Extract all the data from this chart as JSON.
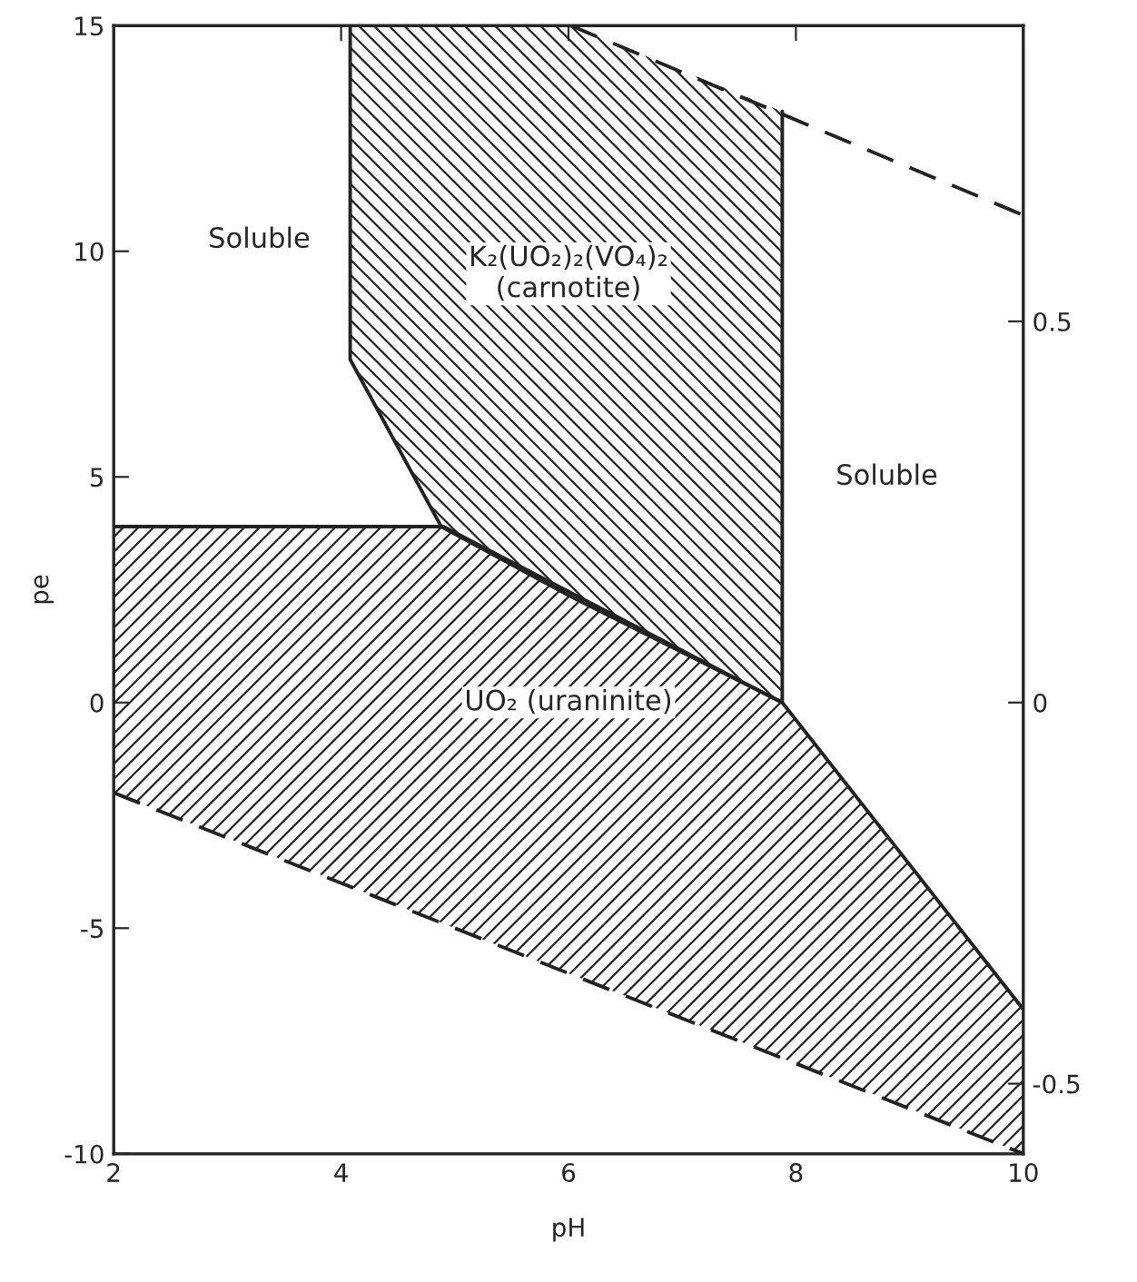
{
  "chart_data": {
    "type": "line",
    "xlabel": "pH",
    "ylabel": "pe",
    "xlim": [
      2,
      10
    ],
    "xticks": [
      2,
      4,
      6,
      8,
      10
    ],
    "ylim": [
      -10,
      15
    ],
    "yticks": [
      -10,
      -5,
      0,
      5,
      10,
      15
    ],
    "y2lim": [
      -0.592,
      0.888
    ],
    "y2ticks": [
      -0.5,
      0,
      0.5
    ],
    "grid": false,
    "legend": false,
    "series": [
      {
        "color": "#222222",
        "x": [
          2,
          4.9,
          7.88,
          10
        ],
        "values": [
          3.9,
          3.9,
          0,
          -6.8
        ],
        "lower": [
          -2,
          -4.9,
          -7.88,
          -10
        ],
        "upper": [
          3.9,
          3.9,
          0,
          -6.8
        ]
      },
      {
        "color": "#222222",
        "x": [
          4.08,
          4.08,
          4.88,
          6.02,
          7.88,
          7.88
        ],
        "values": [
          15,
          7.6,
          3.9,
          2.35,
          0,
          13.1
        ],
        "lower": [
          7.6,
          7.6,
          3.9,
          2.35,
          0,
          0
        ],
        "upper": [
          15,
          15,
          15,
          15,
          13.1,
          13.1
        ]
      },
      {
        "color": "#222222",
        "line_style": "dashed",
        "x": [
          6.02,
          10
        ],
        "values": [
          15,
          10.8
        ]
      },
      {
        "color": "#222222",
        "line_style": "dashed",
        "x": [
          2,
          10
        ],
        "values": [
          -2,
          -10
        ]
      }
    ],
    "annotations": [
      "Soluble",
      "Soluble",
      "K₂(UO₂)₂(VO₄)₂\n(carnotite)",
      "UO₂ (uraninite)"
    ]
  }
}
